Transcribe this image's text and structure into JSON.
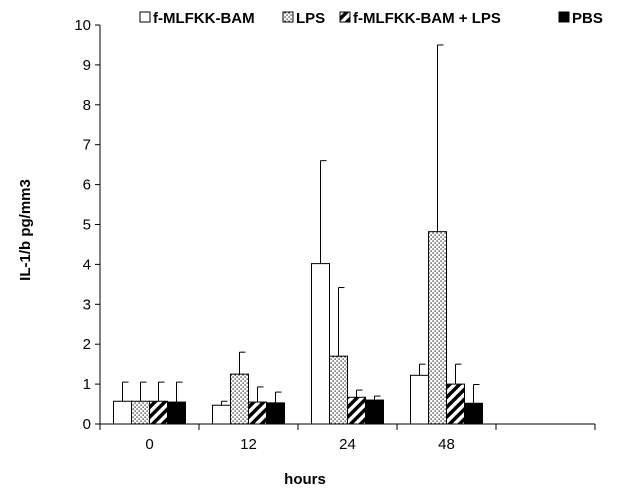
{
  "chart_data": {
    "type": "bar",
    "xlabel": "hours",
    "ylabel": "IL-1/b pg/mm3",
    "ylim": [
      0,
      10
    ],
    "yticks": [
      0,
      1,
      2,
      3,
      4,
      5,
      6,
      7,
      8,
      9,
      10
    ],
    "categories": [
      "0",
      "12",
      "24",
      "48"
    ],
    "grid": false,
    "legend_position": "top",
    "series": [
      {
        "name": "f-MLFKK-BAM",
        "fill": "white",
        "values": [
          0.57,
          0.47,
          4.02,
          1.22
        ],
        "errors": [
          0.48,
          0.1,
          2.58,
          0.28
        ]
      },
      {
        "name": "LPS",
        "fill": "dots",
        "values": [
          0.57,
          1.25,
          1.7,
          4.82
        ],
        "errors": [
          0.48,
          0.55,
          1.72,
          4.68
        ]
      },
      {
        "name": "f-MLFKK-BAM + LPS",
        "fill": "diagonal",
        "values": [
          0.57,
          0.55,
          0.67,
          1.0
        ],
        "errors": [
          0.48,
          0.38,
          0.18,
          0.5
        ]
      },
      {
        "name": "PBS",
        "fill": "black",
        "values": [
          0.55,
          0.53,
          0.6,
          0.52
        ],
        "errors": [
          0.5,
          0.27,
          0.1,
          0.47
        ]
      }
    ]
  }
}
